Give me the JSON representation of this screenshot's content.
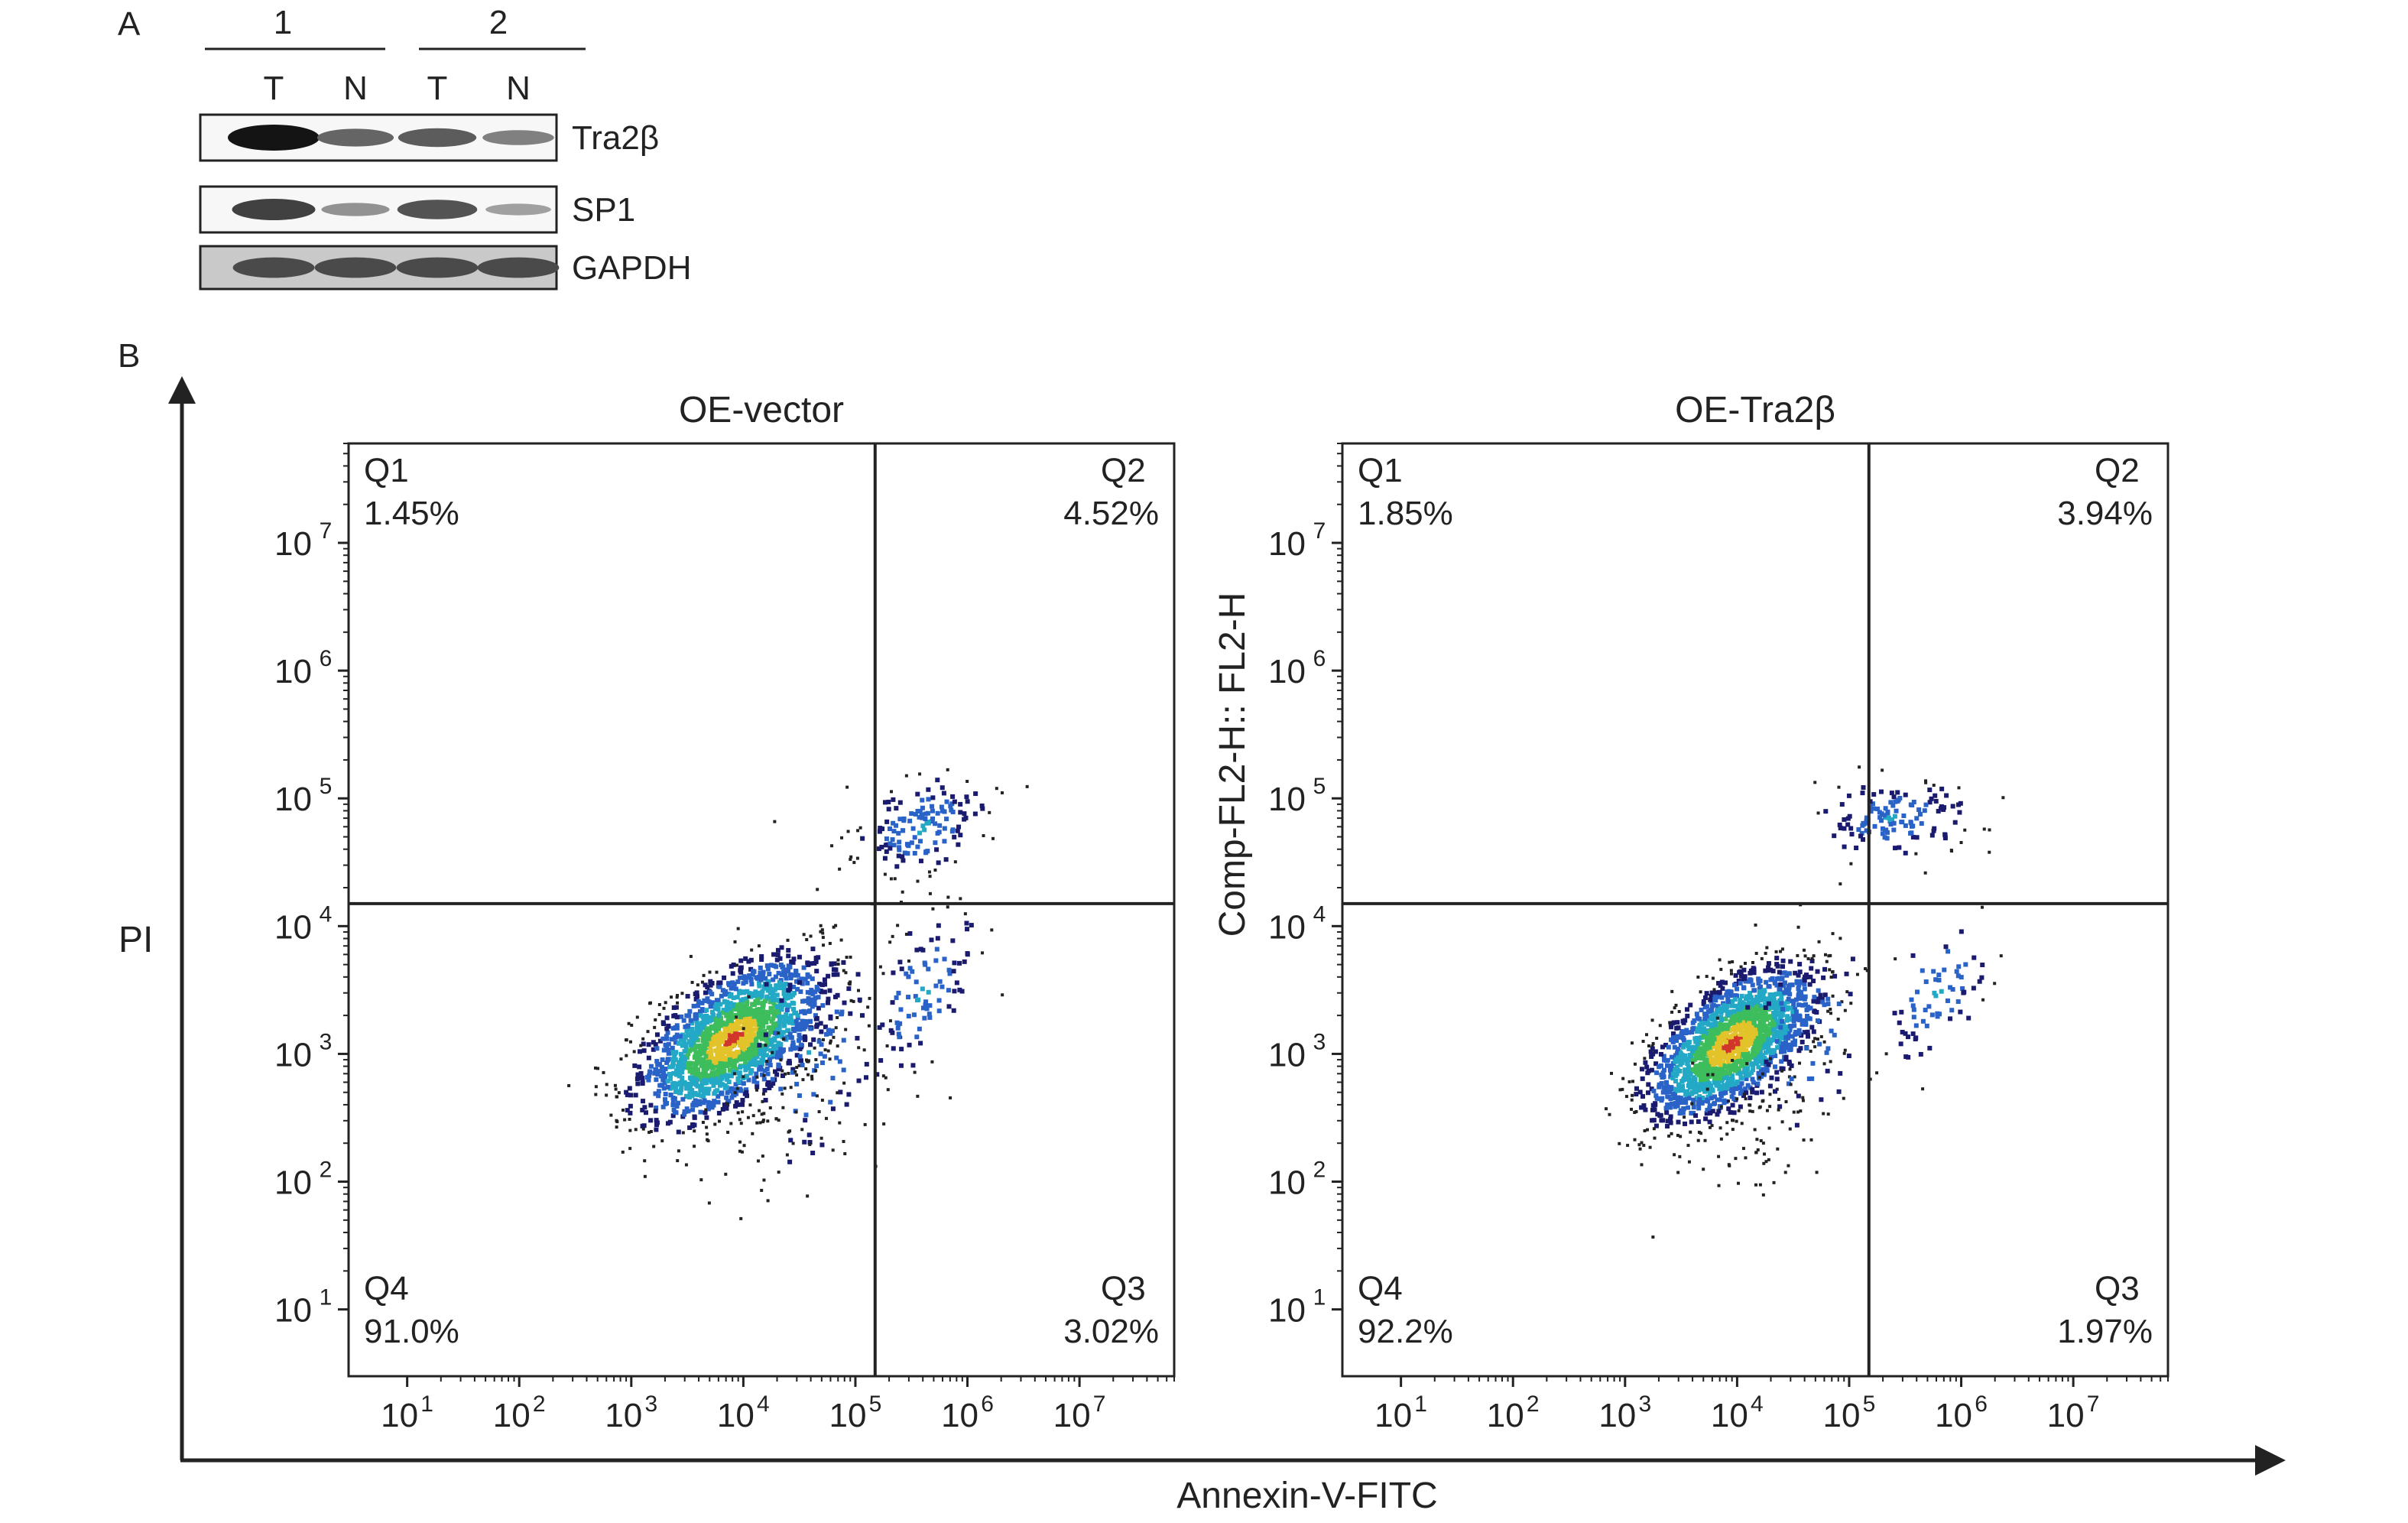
{
  "figure": {
    "panel_a_label": "A",
    "panel_b_label": "B",
    "axis_y_label": "PI",
    "axis_x_label": "Annexin-V-FITC"
  },
  "western_blot": {
    "groups": [
      {
        "label": "1",
        "lanes": [
          "T",
          "N"
        ]
      },
      {
        "label": "2",
        "lanes": [
          "T",
          "N"
        ]
      }
    ],
    "rows": [
      {
        "name": "Tra2β",
        "band_intensity": [
          1.0,
          0.55,
          0.6,
          0.4
        ],
        "background": "#f7f7f7"
      },
      {
        "name": "SP1",
        "band_intensity": [
          0.75,
          0.3,
          0.65,
          0.22
        ],
        "background": "#f7f7f7"
      },
      {
        "name": "GAPDH",
        "band_intensity": [
          0.7,
          0.7,
          0.7,
          0.7
        ],
        "background": "#c9c9c9"
      }
    ]
  },
  "chart_data": [
    {
      "type": "scatter",
      "title": "OE-vector",
      "xlabel": "Annexin-V-FITC",
      "ylabel": "PI",
      "x_scale": "log10",
      "y_scale": "log10",
      "xlim": [
        3,
        70000000
      ],
      "ylim": [
        3,
        60000000
      ],
      "x_ticks": [
        10,
        100,
        1000,
        10000,
        100000,
        1000000,
        10000000
      ],
      "y_ticks": [
        10,
        100,
        1000,
        10000,
        100000,
        1000000,
        10000000
      ],
      "gate": {
        "x": 150000,
        "y": 15000
      },
      "quadrants": [
        {
          "name": "Q1",
          "percent": "1.45%",
          "corner": "top-left"
        },
        {
          "name": "Q2",
          "percent": "4.52%",
          "corner": "top-right"
        },
        {
          "name": "Q3",
          "percent": "3.02%",
          "corner": "bottom-right"
        },
        {
          "name": "Q4",
          "percent": "91.0%",
          "corner": "bottom-left"
        }
      ],
      "populations": [
        {
          "center": [
            8000,
            1300
          ],
          "log_spread": [
            0.42,
            0.32
          ],
          "tilt": 0.6,
          "share": 0.91,
          "density": "high"
        },
        {
          "center": [
            40000,
            1000
          ],
          "log_spread": [
            0.35,
            0.45
          ],
          "tilt": 0.2,
          "share": 0.03,
          "density": "medium"
        },
        {
          "center": [
            400000,
            60000
          ],
          "log_spread": [
            0.3,
            0.2
          ],
          "tilt": 0.3,
          "share": 0.045,
          "density": "medium"
        },
        {
          "center": [
            400000,
            3000
          ],
          "log_spread": [
            0.25,
            0.35
          ],
          "tilt": 0.5,
          "share": 0.03,
          "density": "medium"
        },
        {
          "center": [
            20000,
            400
          ],
          "log_spread": [
            0.35,
            0.35
          ],
          "tilt": 0.2,
          "share": 0.02,
          "density": "low"
        }
      ]
    },
    {
      "type": "scatter",
      "title": "OE-Tra2β",
      "xlabel": "Annexin-V-FITC",
      "ylabel": "Comp-FL2-H:: FL2-H",
      "x_scale": "log10",
      "y_scale": "log10",
      "xlim": [
        3,
        70000000
      ],
      "ylim": [
        3,
        60000000
      ],
      "x_ticks": [
        10,
        100,
        1000,
        10000,
        100000,
        1000000,
        10000000
      ],
      "y_ticks": [
        10,
        100,
        1000,
        10000,
        100000,
        1000000,
        10000000
      ],
      "gate": {
        "x": 150000,
        "y": 15000
      },
      "quadrants": [
        {
          "name": "Q1",
          "percent": "1.85%",
          "corner": "top-left"
        },
        {
          "name": "Q2",
          "percent": "3.94%",
          "corner": "top-right"
        },
        {
          "name": "Q3",
          "percent": "1.97%",
          "corner": "bottom-right"
        },
        {
          "name": "Q4",
          "percent": "92.2%",
          "corner": "bottom-left"
        }
      ],
      "populations": [
        {
          "center": [
            9000,
            1200
          ],
          "log_spread": [
            0.38,
            0.3
          ],
          "tilt": 0.6,
          "share": 0.922,
          "density": "high"
        },
        {
          "center": [
            40000,
            1500
          ],
          "log_spread": [
            0.3,
            0.4
          ],
          "tilt": 0.2,
          "share": 0.02,
          "density": "medium"
        },
        {
          "center": [
            250000,
            70000
          ],
          "log_spread": [
            0.35,
            0.15
          ],
          "tilt": 0.1,
          "share": 0.04,
          "density": "medium"
        },
        {
          "center": [
            600000,
            3000
          ],
          "log_spread": [
            0.25,
            0.3
          ],
          "tilt": 0.5,
          "share": 0.02,
          "density": "medium"
        },
        {
          "center": [
            15000,
            250
          ],
          "log_spread": [
            0.35,
            0.35
          ],
          "tilt": 0.2,
          "share": 0.02,
          "density": "low"
        }
      ]
    }
  ],
  "colors": {
    "ink": "#222222",
    "density_low": "#1a1a6e",
    "density_mid_low": "#2a63c8",
    "density_mid": "#23a9c6",
    "density_mid_high": "#3dbd5c",
    "density_high": "#e3c32a",
    "density_peak": "#d0362a"
  }
}
